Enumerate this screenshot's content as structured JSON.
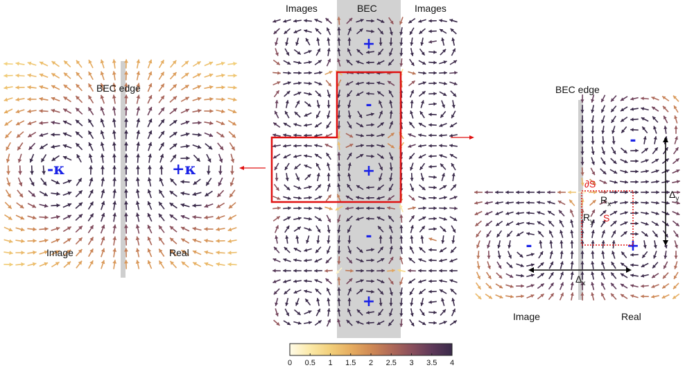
{
  "left_panel": {
    "edge_label": "BEC edge",
    "image_charge": "-κ",
    "real_charge": "+κ",
    "image_label": "Image",
    "real_label": "Real"
  },
  "center_panel": {
    "left_column_label": "Images",
    "center_column_label": "BEC",
    "right_column_label": "Images",
    "vortex_signs": [
      "+",
      "-",
      "+",
      "-",
      "+"
    ]
  },
  "right_panel": {
    "edge_label": "BEC edge",
    "image_sign": "-",
    "real_sign": "+",
    "upper_sign": "-",
    "boundary_label": "∂S",
    "region_label": "S",
    "rx_label": "R",
    "rx_sub": "x",
    "ry_label": "R",
    "ry_sub": "y",
    "dx_label": "Δ",
    "dx_sub": "x",
    "dy_label": "Δ",
    "dy_sub": "y",
    "image_label": "Image",
    "real_label": "Real"
  },
  "colorbar": {
    "ticks": [
      "0",
      "0.5",
      "1",
      "1.5",
      "2",
      "2.5",
      "3",
      "3.5",
      "4"
    ],
    "min": 0,
    "max": 4,
    "colors": [
      "#fffbe8",
      "#fbe9a8",
      "#f2cf7a",
      "#e6ad60",
      "#d08a55",
      "#b06a58",
      "#8a4f5c",
      "#5f3a5a",
      "#3a2a4a"
    ]
  }
}
